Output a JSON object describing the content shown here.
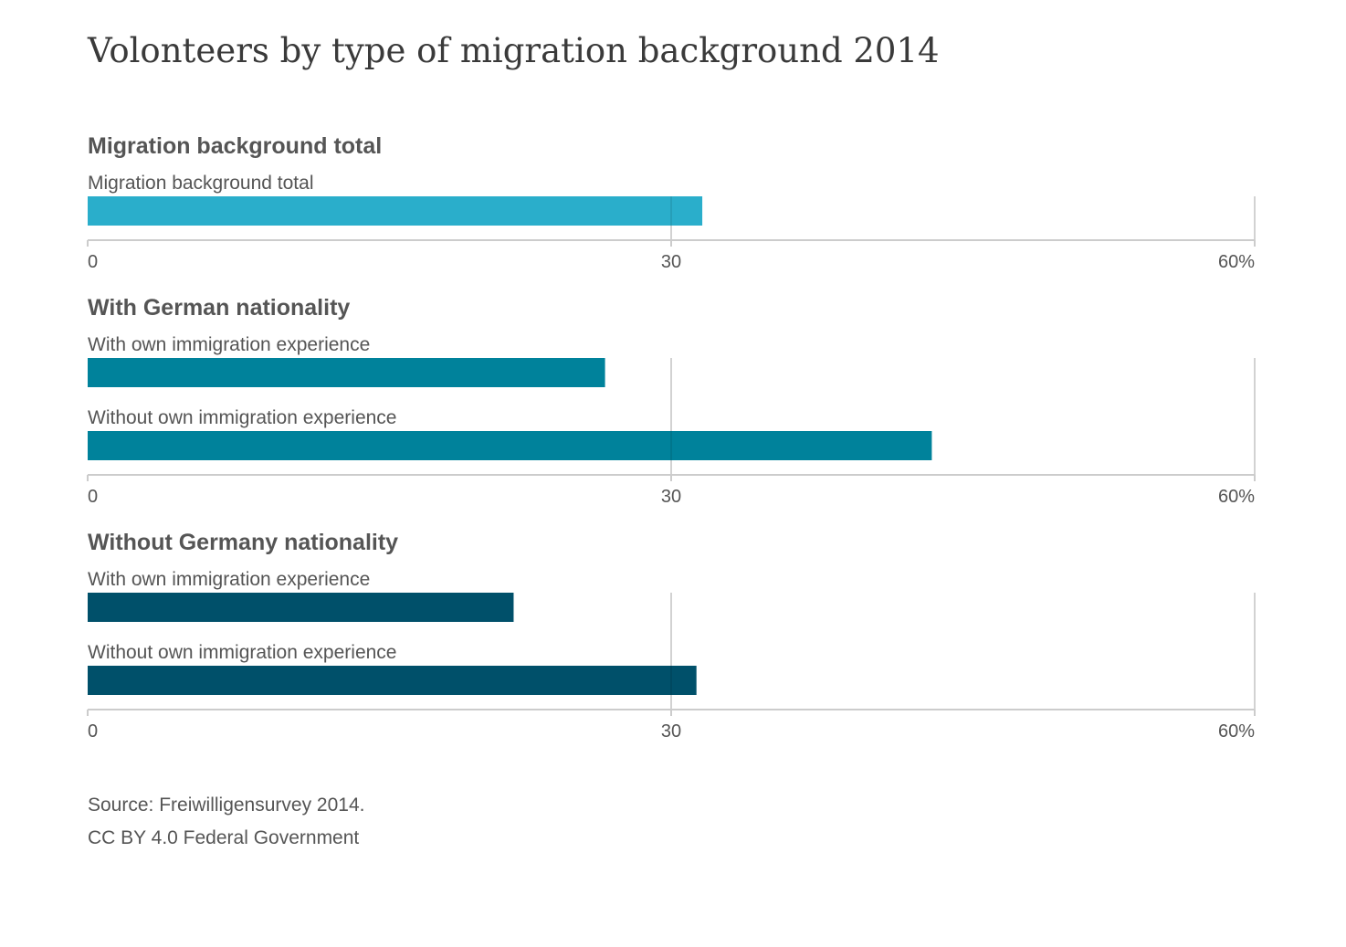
{
  "chart_data": {
    "type": "bar",
    "orientation": "horizontal",
    "title": "Volonteers by type of migration background 2014",
    "unit": "%",
    "xlim": [
      0,
      60
    ],
    "ticks": [
      "0",
      "30",
      "60%"
    ],
    "tick_values": [
      0,
      30,
      60
    ],
    "grid": true,
    "colors": {
      "panel_1": "#2aaecb",
      "panel_2": "#00829b",
      "panel_3": "#00506a",
      "axis": "#cccccc",
      "text": "#555555",
      "heading": "#555555"
    },
    "panels": [
      {
        "heading": "Migration background total",
        "categories": [
          "Migration background total"
        ],
        "values": [
          31.6
        ]
      },
      {
        "heading": "With German nationality",
        "categories": [
          "With own immigration experience",
          "Without own immigration experience"
        ],
        "values": [
          26.6,
          43.4
        ]
      },
      {
        "heading": "Without Germany nationality",
        "categories": [
          "With own immigration experience",
          "Without own immigration experience"
        ],
        "values": [
          21.9,
          31.3
        ]
      }
    ]
  },
  "source": {
    "line1": "Source: Freiwilligensurvey 2014.",
    "line2": "CC BY 4.0 Federal Government"
  }
}
